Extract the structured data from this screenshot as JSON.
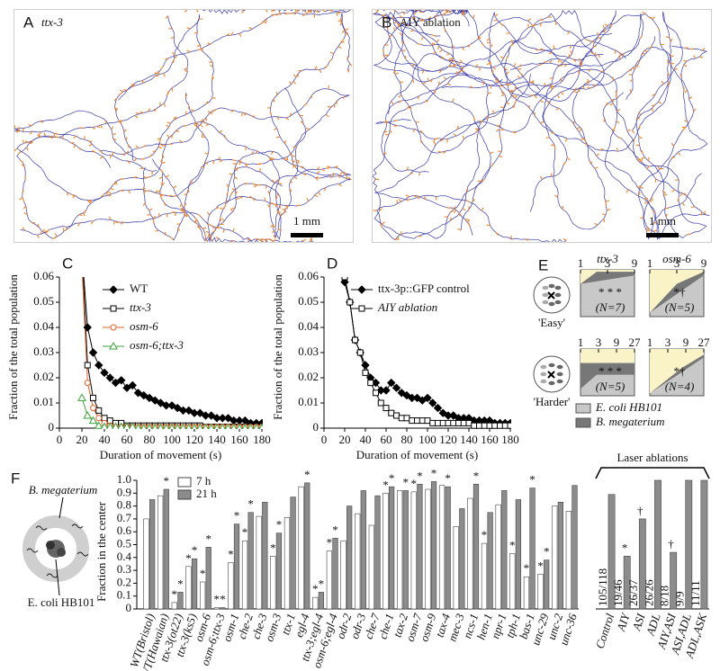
{
  "panel_a": {
    "label": "A",
    "title": "ttx-3",
    "scale": "1 mm"
  },
  "panel_b": {
    "label": "B",
    "title": "AIY ablation",
    "scale": "1 mm"
  },
  "chart_data": [
    {
      "type": "line",
      "label": "C",
      "xlabel": "Duration of movement (s)",
      "ylabel": "Fraction of the total population",
      "x": [
        20,
        25,
        30,
        35,
        40,
        45,
        50,
        55,
        60,
        65,
        70,
        75,
        80,
        85,
        90,
        95,
        100,
        105,
        110,
        115,
        120,
        125,
        130,
        135,
        140,
        145,
        150,
        155,
        160,
        165,
        170,
        175,
        180
      ],
      "xlim": [
        0,
        180
      ],
      "xticks": [
        0,
        20,
        40,
        60,
        80,
        100,
        120,
        140,
        160,
        180
      ],
      "ylim": [
        0,
        0.06
      ],
      "yticks": [
        0,
        0.01,
        0.02,
        0.03,
        0.04,
        0.05,
        0.06
      ],
      "legend": "upper right",
      "series": [
        {
          "name": "WT",
          "color": "#000000",
          "marker": "diamond",
          "filled": true,
          "values": [
            0.07,
            0.04,
            0.03,
            0.025,
            0.022,
            0.02,
            0.018,
            0.019,
            0.016,
            0.017,
            0.014,
            0.013,
            0.012,
            0.011,
            0.01,
            0.009,
            0.009,
            0.008,
            0.007,
            0.007,
            0.006,
            0.006,
            0.005,
            0.005,
            0.004,
            0.004,
            0.004,
            0.003,
            0.003,
            0.003,
            0.002,
            0.002,
            0.002
          ]
        },
        {
          "name": "ttx-3",
          "color": "#000000",
          "marker": "square",
          "filled": false,
          "values": [
            0.07,
            0.025,
            0.012,
            0.007,
            0.004,
            0.003,
            0.002,
            0.002,
            0.001,
            0.001,
            0.001,
            0.001,
            0.001,
            0.001,
            0.001,
            0.001,
            0.001,
            0.001,
            0.001,
            0.001,
            0.001,
            0.001,
            0.0005,
            0.0005,
            0.0005,
            0.0005,
            0.0005,
            0.0005,
            0.0005,
            0.0005,
            0.0005,
            0.0005,
            0.0005
          ]
        },
        {
          "name": "osm-6",
          "color": "#e0602a",
          "marker": "circle",
          "filled": false,
          "values": [
            0.065,
            0.018,
            0.008,
            0.004,
            0.002,
            0.001,
            0.0005,
            0.0005,
            0.0005,
            0.0005,
            0.0005,
            0.0005,
            0.0005,
            0.0005,
            0.0005,
            0.0005,
            0.0005,
            0.0005,
            0.0005,
            0.0005,
            0.0005,
            0.0005,
            0.0005,
            0.0005,
            0.0005,
            0.0005,
            0.0005,
            0.0005,
            0.0005,
            0.0005,
            0.0005,
            0.0005,
            0.0005
          ]
        },
        {
          "name": "osm-6;ttx-3",
          "color": "#3aa23a",
          "marker": "triangle",
          "filled": false,
          "values": [
            0.012,
            0.005,
            0.003,
            0.001,
            0.0005,
            0.0005,
            0.0005,
            0.0005,
            0.0005,
            0.0005,
            0,
            0,
            0,
            0,
            0,
            0,
            0,
            0,
            0,
            0,
            0,
            0,
            0,
            0,
            0,
            0,
            0,
            0,
            0,
            0,
            0,
            0,
            0
          ]
        }
      ]
    },
    {
      "type": "line",
      "label": "D",
      "xlabel": "Duration of movement (s)",
      "ylabel": "Fraction of the total population",
      "x": [
        20,
        25,
        30,
        35,
        40,
        45,
        50,
        55,
        60,
        65,
        70,
        75,
        80,
        85,
        90,
        95,
        100,
        105,
        110,
        115,
        120,
        125,
        130,
        135,
        140,
        145,
        150,
        155,
        160,
        165,
        170,
        175,
        180
      ],
      "xlim": [
        0,
        180
      ],
      "xticks": [
        0,
        20,
        40,
        60,
        80,
        100,
        120,
        140,
        160,
        180
      ],
      "ylim": [
        0,
        0.06
      ],
      "yticks": [
        0,
        0.01,
        0.02,
        0.03,
        0.04,
        0.05,
        0.06
      ],
      "legend": "upper right",
      "series": [
        {
          "name": "ttx-3p::GFP control",
          "color": "#000000",
          "marker": "diamond",
          "filled": true,
          "values": [
            0.058,
            0.05,
            0.035,
            0.03,
            0.025,
            0.02,
            0.018,
            0.015,
            0.015,
            0.018,
            0.016,
            0.014,
            0.013,
            0.012,
            0.012,
            0.011,
            0.012,
            0.01,
            0.008,
            0.006,
            0.005,
            0.005,
            0.004,
            0.004,
            0.004,
            0.003,
            0.003,
            0.003,
            0.003,
            0.002,
            0.002,
            0.002,
            0.002
          ]
        },
        {
          "name": "AIY ablation",
          "color": "#000000",
          "marker": "square",
          "filled": false,
          "values": [
            0.06,
            0.05,
            0.035,
            0.03,
            0.022,
            0.018,
            0.014,
            0.01,
            0.008,
            0.006,
            0.005,
            0.004,
            0.004,
            0.003,
            0.003,
            0.003,
            0.003,
            0.002,
            0.002,
            0.002,
            0.002,
            0.002,
            0.002,
            0.002,
            0.002,
            0.001,
            0.001,
            0.001,
            0.001,
            0.001,
            0.001,
            0.001,
            0.001
          ]
        }
      ]
    },
    {
      "type": "bar",
      "ylabel": "Fraction in the center",
      "categories": [
        "WT(Bristol)",
        "WT(Hawaian)",
        "ttx-3(ot22)",
        "ttx-3(ks5)",
        "osm-6",
        "osm-6;ttx-3",
        "osm-1",
        "che-2",
        "che-3",
        "osm-3",
        "ttx-1",
        "egl-4",
        "ttx-3;egl-4",
        "osm-6;egl-4",
        "odr-2",
        "odr-3",
        "che-7",
        "che-1",
        "tax-2",
        "osm-7",
        "osm-9",
        "tax-4",
        "mec-3",
        "ncs-1",
        "hen-1",
        "npr-1",
        "tph-1",
        "bas-1",
        "unc-29",
        "unc-2",
        "unc-36"
      ],
      "ylim": [
        0,
        1
      ],
      "yticks": [
        0,
        0.1,
        0.2,
        0.3,
        0.4,
        0.5,
        0.6,
        0.7,
        0.8,
        0.9,
        {
          "value": 1,
          "label": "1.0"
        }
      ],
      "series": [
        {
          "name": "7 h",
          "color": "#ffffff",
          "values": [
            0.7,
            0.88,
            0.05,
            0.33,
            0.21,
            0.01,
            0.36,
            0.53,
            0.72,
            0.41,
            0.71,
            0.95,
            0.09,
            0.45,
            0.53,
            0.74,
            0.65,
            0.9,
            0.92,
            0.91,
            0.93,
            0.96,
            0.64,
            0.86,
            0.51,
            0.81,
            0.43,
            0.25,
            0.27,
            0.8,
            0.76
          ],
          "marks": [
            null,
            null,
            "*",
            "*",
            "*",
            "*",
            "*",
            "*",
            null,
            "*",
            null,
            null,
            "*",
            "*",
            null,
            null,
            null,
            "*",
            null,
            "*",
            null,
            null,
            null,
            null,
            "*",
            null,
            "*",
            "*",
            "*",
            null,
            null
          ]
        },
        {
          "name": "21 h",
          "color": "#8c8c8c",
          "values": [
            0.85,
            0.93,
            0.13,
            0.39,
            0.48,
            0.01,
            0.66,
            0.75,
            0.83,
            0.59,
            0.87,
            0.98,
            0.13,
            0.55,
            0.8,
            0.92,
            0.88,
            0.95,
            0.92,
            0.97,
            0.99,
            0.95,
            0.78,
            0.97,
            0.75,
            0.92,
            0.85,
            0.94,
            0.38,
            0.83,
            0.96
          ],
          "marks": [
            null,
            "*",
            "*",
            "*",
            "*",
            "*",
            "*",
            "*",
            null,
            "*",
            null,
            "*",
            "*",
            "*",
            null,
            null,
            null,
            "*",
            "*",
            "*",
            "*",
            "*",
            null,
            "*",
            null,
            null,
            null,
            "*",
            "*",
            null,
            null
          ]
        }
      ]
    },
    {
      "type": "bar",
      "title": "Laser ablations",
      "categories": [
        "Control",
        "AIY",
        "ASI",
        "ADL",
        "AIY,ASI",
        "ASI,ADL",
        "ADL,ASK"
      ],
      "ylim": [
        0,
        1
      ],
      "color": "#8c8c8c",
      "values": [
        0.89,
        0.41,
        0.7,
        1,
        0.44,
        1,
        1
      ],
      "value_labels": [
        "105/118",
        "19/46",
        "26/37",
        "26/26",
        "8/18",
        "9/9",
        "11/11"
      ],
      "marks": [
        null,
        "*",
        "†",
        null,
        "†",
        null,
        null
      ]
    }
  ],
  "panel_e": {
    "label": "E",
    "columns": [
      "ttx-3",
      "osm-6"
    ],
    "rows": [
      {
        "name": "'Easy'",
        "ticks": [
          1,
          3,
          9
        ],
        "n": [
          "(N=7)",
          "(N=5)"
        ],
        "marks": [
          "*  *  *",
          "*†"
        ]
      },
      {
        "name": "'Harder'",
        "ticks": [
          1,
          3,
          9,
          27
        ],
        "n": [
          "(N=5)",
          "(N=4)"
        ],
        "marks": [
          "*  *  *",
          "*†"
        ]
      }
    ],
    "legend": [
      {
        "name": "E. coli HB101",
        "color": "#c8c8c8"
      },
      {
        "name": "B. megaterium",
        "color": "#777777"
      }
    ]
  },
  "panel_f": {
    "label": "F",
    "upper": "B. megaterium",
    "lower": "E. coli HB101"
  }
}
